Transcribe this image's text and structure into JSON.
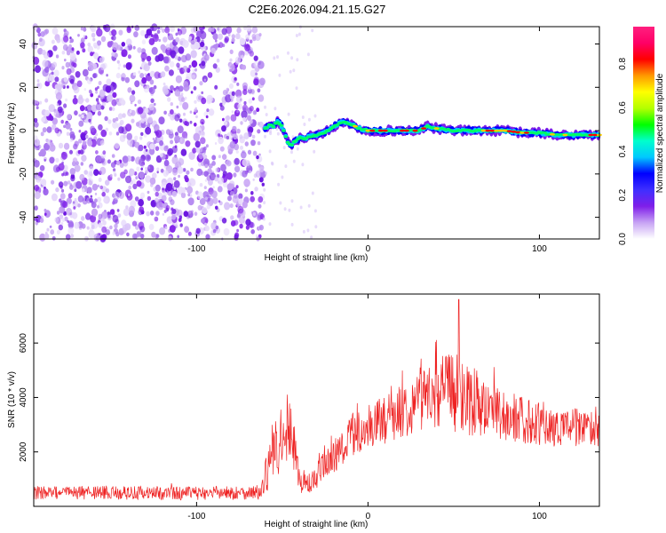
{
  "title": "C2E6.2026.094.21.15.G27",
  "chart_data": [
    {
      "type": "heatmap",
      "description_axis": {
        "xlabel": "Height of straight line (km)",
        "ylabel": "Frequency (Hz)"
      },
      "xlim": [
        -195,
        135
      ],
      "ylim": [
        -50,
        48
      ],
      "x_ticks": [
        -100,
        0,
        100
      ],
      "x_tick_labels": [
        "-100",
        "0",
        "100"
      ],
      "y_ticks": [
        -40,
        -20,
        0,
        20,
        40
      ],
      "y_tick_labels": [
        "-40",
        "-20",
        "0",
        "20",
        "40"
      ],
      "noise_region_x": [
        -195,
        -61
      ],
      "signal_track": {
        "x": [
          -60,
          -57,
          -55,
          -53,
          -51,
          -49,
          -47,
          -45,
          -43,
          -41,
          -39,
          -37,
          -35,
          -30,
          -25,
          -20,
          -15,
          -10,
          -5,
          0,
          10,
          20,
          30,
          35,
          40,
          50,
          60,
          70,
          80,
          90,
          100,
          110,
          120,
          130,
          135
        ],
        "frequency_hz": [
          1,
          3,
          2,
          4,
          3,
          0,
          -5,
          -7,
          -5,
          -4,
          -3,
          -4,
          -3,
          -2,
          -1,
          2,
          4,
          3,
          1,
          0,
          0,
          0,
          0,
          2,
          1,
          0,
          0,
          0,
          0,
          -1,
          -1,
          -2,
          -2,
          -2,
          -2
        ]
      },
      "colorbar": {
        "label": "Normalized spectral amplitude",
        "range": [
          0.0,
          0.97
        ],
        "ticks": [
          0.0,
          0.2,
          0.4,
          0.6,
          0.8
        ],
        "tick_labels": [
          "0.0",
          "0.2",
          "0.4",
          "0.6",
          "0.8"
        ],
        "colors": [
          "#ffffff",
          "#c7a3f4",
          "#7f1fe9",
          "#3f2fff",
          "#0000ff",
          "#00c8ff",
          "#00ffcc",
          "#00ff00",
          "#b4ff00",
          "#ffff00",
          "#ff9900",
          "#ff0000",
          "#ff0066",
          "#ff1f7f"
        ]
      },
      "grid": false,
      "legend": "none"
    },
    {
      "type": "line",
      "xlabel": "Height of straight line (km)",
      "ylabel": "SNR (10 * v/v)",
      "xlim": [
        -195,
        135
      ],
      "ylim": [
        0,
        7800
      ],
      "x_ticks": [
        -100,
        0,
        100
      ],
      "x_tick_labels": [
        "-100",
        "0",
        "100"
      ],
      "y_ticks": [
        2000,
        4000,
        6000
      ],
      "y_tick_labels": [
        "2000",
        "4000",
        "6000"
      ],
      "series_color": "#ee2222",
      "envelope": {
        "x": [
          -195,
          -150,
          -100,
          -70,
          -62,
          -58,
          -55,
          -50,
          -45,
          -40,
          -35,
          -30,
          -25,
          -20,
          -15,
          -10,
          0,
          10,
          20,
          30,
          40,
          50,
          60,
          70,
          80,
          90,
          100,
          110,
          120,
          135
        ],
        "mean": [
          500,
          500,
          480,
          500,
          520,
          1500,
          1900,
          2200,
          2800,
          1000,
          800,
          1000,
          1500,
          1800,
          2200,
          2600,
          2900,
          3200,
          3500,
          3900,
          4200,
          4300,
          3900,
          3600,
          3300,
          3200,
          3000,
          2900,
          2900,
          2800
        ],
        "spread": [
          250,
          250,
          250,
          250,
          300,
          900,
          900,
          1000,
          1100,
          500,
          400,
          500,
          600,
          700,
          700,
          800,
          800,
          900,
          1000,
          1100,
          1300,
          1600,
          1300,
          1000,
          900,
          900,
          800,
          700,
          700,
          600
        ]
      },
      "peak": {
        "x": 53,
        "y": 7600
      },
      "grid": false,
      "legend": "none"
    }
  ]
}
